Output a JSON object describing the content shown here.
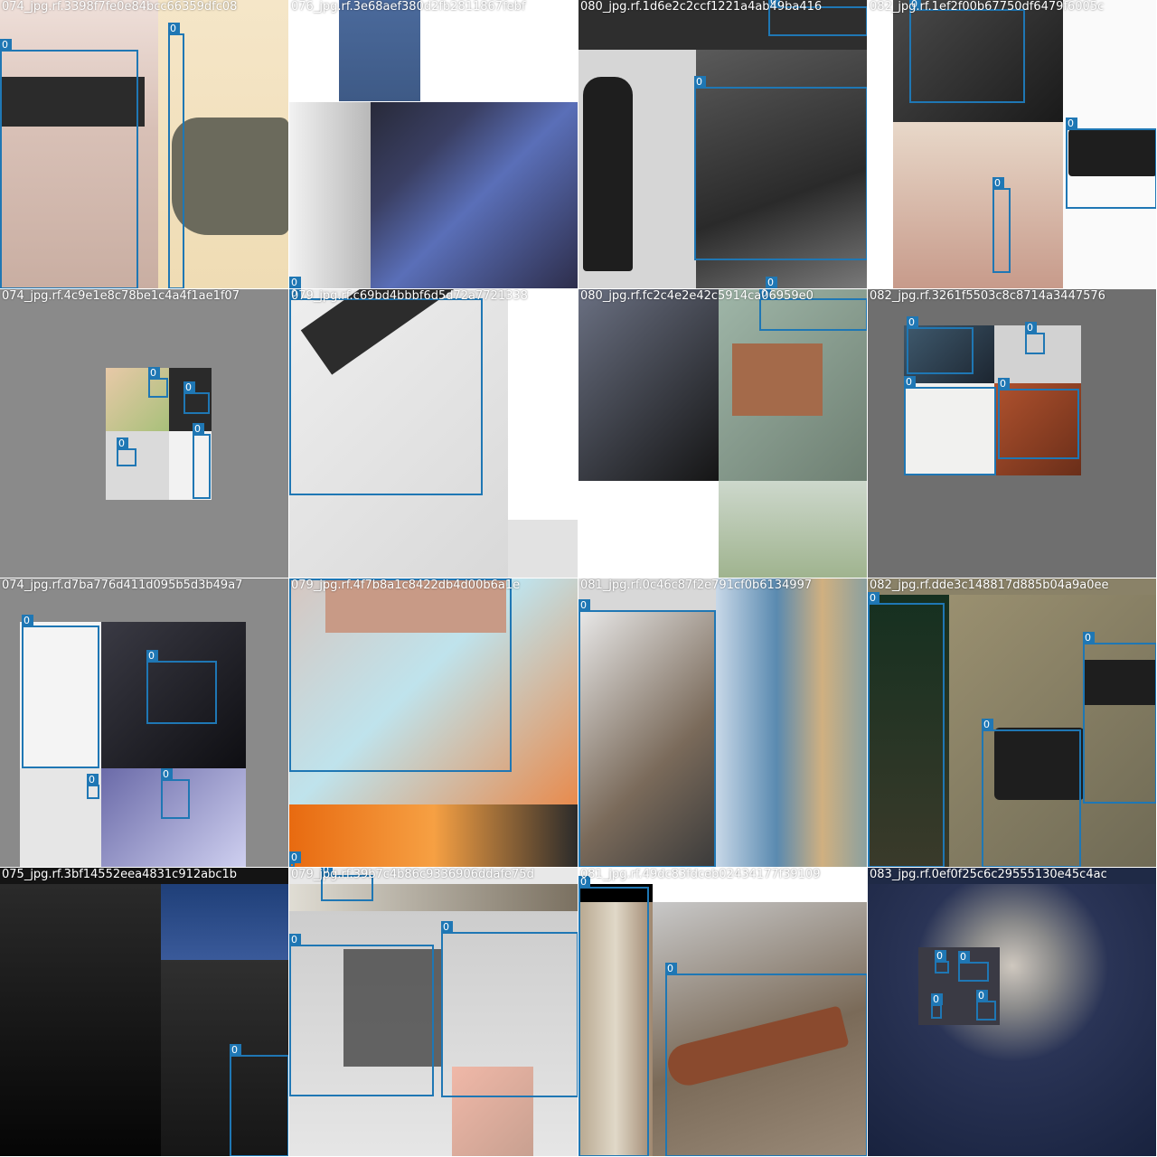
{
  "mosaic": {
    "box_color": "#1f77b4",
    "tiles": [
      {
        "name": "074_jpg.rf.3398f7fe0e84bcc66359dfc08",
        "labels": [
          "0",
          "0"
        ]
      },
      {
        "name": "076_jpg.rf.3e68aef380d2fb2811867febf",
        "labels": [
          "0"
        ]
      },
      {
        "name": "080_jpg.rf.1d6e2c2ccf1221a4ab49ba416",
        "labels": [
          "0",
          "0",
          "0"
        ]
      },
      {
        "name": "082_jpg.rf.1ef2f00b67750df6479f6005c",
        "labels": [
          "0",
          "0",
          "0"
        ]
      },
      {
        "name": "074_jpg.rf.4c9e1e8c78be1c4a4f1ae1f07",
        "labels": [
          "0",
          "0",
          "0",
          "0"
        ]
      },
      {
        "name": "079_jpg.rf.c69bd4bbbf6d5d72a7721338",
        "labels": [
          "0"
        ]
      },
      {
        "name": "080_jpg.rf.fc2c4e2e42c5914ca06959e0",
        "labels": [
          "0"
        ]
      },
      {
        "name": "082_jpg.rf.3261f5503c8c8714a3447576",
        "labels": [
          "0",
          "0",
          "0",
          "0"
        ]
      },
      {
        "name": "074_jpg.rf.d7ba776d411d095b5d3b49a7",
        "labels": [
          "0",
          "0",
          "0",
          "0"
        ]
      },
      {
        "name": "079_jpg.rf.4f7b8a1c8422db4d00b6a1e",
        "labels": [
          "0",
          "0"
        ]
      },
      {
        "name": "081_jpg.rf.0c46c87f2e791cf0b6134997",
        "labels": [
          "0"
        ]
      },
      {
        "name": "082_jpg.rf.dde3c148817d885b04a9a0ee",
        "labels": [
          "0",
          "0",
          "0"
        ]
      },
      {
        "name": "075_jpg.rf.3bf14552eea4831c912abc1b",
        "labels": [
          "0"
        ]
      },
      {
        "name": "079_jpg.rf.39b7c4b86c9336906ddafe75d",
        "labels": [
          "0",
          "0",
          "0"
        ]
      },
      {
        "name": "081_jpg.rf.49dc83fdceb02434177f39109",
        "labels": [
          "0",
          "0"
        ]
      },
      {
        "name": "083_jpg.rf.0ef0f25c6c29555130e45c4ac",
        "labels": [
          "0",
          "0",
          "0",
          "0"
        ]
      }
    ]
  }
}
